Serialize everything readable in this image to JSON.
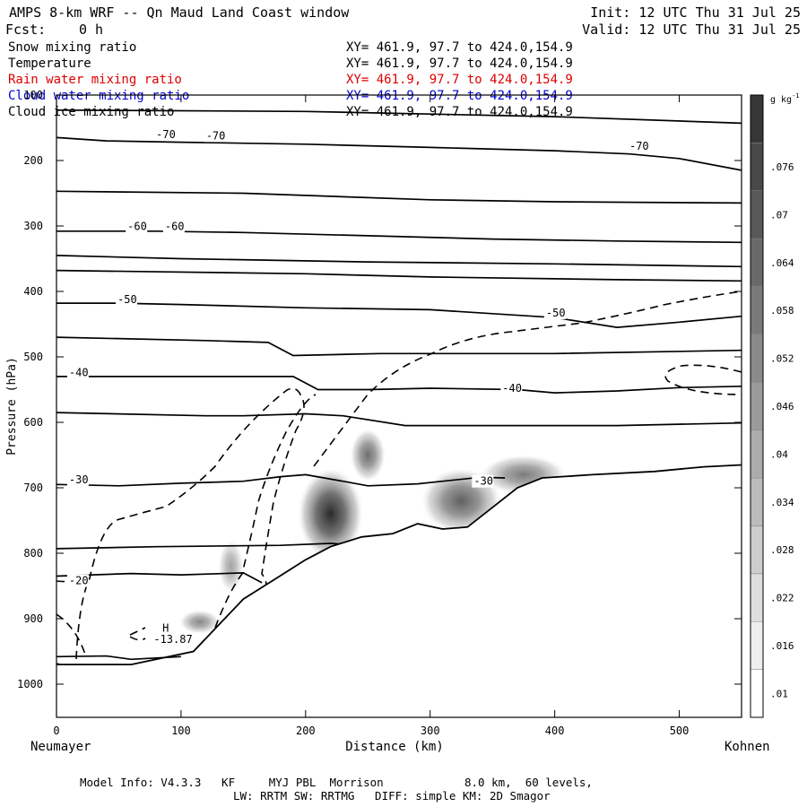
{
  "header": {
    "title": "AMPS 8-km WRF -- Qn Maud Land Coast window",
    "init": "Init: 12 UTC Thu 31 Jul 25",
    "fcst_label": "Fcst:",
    "fcst_value": "0 h",
    "valid": "Valid: 12 UTC Thu 31 Jul 25"
  },
  "legend": {
    "items": [
      {
        "label": "Snow mixing ratio",
        "xy": "XY= 461.9, 97.7 to 424.0,154.9",
        "color": "#000000"
      },
      {
        "label": "Temperature",
        "xy": "XY= 461.9, 97.7 to 424.0,154.9",
        "color": "#000000"
      },
      {
        "label": "Rain water mixing ratio",
        "xy": "XY= 461.9, 97.7 to 424.0,154.9",
        "color": "#dd0000"
      },
      {
        "label": "Cloud water mixing ratio",
        "xy": "XY= 461.9, 97.7 to 424.0,154.9",
        "color": "#0000cc"
      },
      {
        "label": "Cloud ice mixing ratio",
        "xy": "XY= 461.9, 97.7 to 424.0,154.9",
        "color": "#000000"
      }
    ]
  },
  "footer": {
    "line1": "Model Info: V4.3.3   KF     MYJ PBL  Morrison            8.0 km,  60 levels,",
    "line2": "LW: RRTM SW: RRTMG   DIFF: simple KM: 2D Smagor"
  },
  "chart_data": {
    "type": "heatmap",
    "xlabel": "Distance (km)",
    "ylabel": "Pressure (hPa)",
    "x_start_label": "Neumayer",
    "x_end_label": "Kohnen",
    "xlim": [
      0,
      550
    ],
    "ylim": [
      1050,
      100
    ],
    "x_ticks": [
      0,
      100,
      200,
      300,
      400,
      500
    ],
    "y_ticks": [
      100,
      200,
      300,
      400,
      500,
      600,
      700,
      800,
      900,
      1000
    ],
    "colorbar": {
      "unit": "g kg",
      "unit_exponent": "-1",
      "levels": [
        ".01",
        ".016",
        ".022",
        ".028",
        ".034",
        ".04",
        ".046",
        ".052",
        ".058",
        ".064",
        ".07",
        ".076"
      ]
    },
    "terrain": [
      [
        0,
        970
      ],
      [
        60,
        970
      ],
      [
        110,
        950
      ],
      [
        130,
        910
      ],
      [
        150,
        870
      ],
      [
        175,
        840
      ],
      [
        200,
        810
      ],
      [
        220,
        790
      ],
      [
        245,
        775
      ],
      [
        270,
        770
      ],
      [
        290,
        755
      ],
      [
        310,
        763
      ],
      [
        330,
        760
      ],
      [
        350,
        730
      ],
      [
        370,
        700
      ],
      [
        390,
        685
      ],
      [
        430,
        680
      ],
      [
        480,
        675
      ],
      [
        520,
        668
      ],
      [
        550,
        665
      ]
    ],
    "isotherms": [
      {
        "points": [
          [
            0,
            165
          ],
          [
            40,
            170
          ],
          [
            100,
            172
          ],
          [
            200,
            175
          ],
          [
            300,
            180
          ],
          [
            400,
            185
          ],
          [
            460,
            190
          ],
          [
            500,
            197
          ],
          [
            550,
            215
          ]
        ],
        "labels": [
          {
            "text": "-70",
            "x": 80,
            "p": 160
          },
          {
            "text": "-70",
            "x": 120,
            "p": 162
          },
          {
            "text": "-70",
            "x": 460,
            "p": 178
          }
        ]
      },
      {
        "points": [
          [
            0,
            308
          ],
          [
            80,
            308
          ],
          [
            150,
            310
          ],
          [
            250,
            315
          ],
          [
            350,
            320
          ],
          [
            450,
            323
          ],
          [
            550,
            325
          ]
        ],
        "labels": [
          {
            "text": "-60",
            "x": 57,
            "p": 301
          },
          {
            "text": "-60",
            "x": 87,
            "p": 301
          }
        ]
      },
      {
        "points": [
          [
            0,
            418
          ],
          [
            50,
            418
          ],
          [
            100,
            420
          ],
          [
            200,
            425
          ],
          [
            300,
            428
          ],
          [
            400,
            440
          ],
          [
            450,
            455
          ],
          [
            500,
            447
          ],
          [
            550,
            438
          ]
        ],
        "labels": [
          {
            "text": "-50",
            "x": 49,
            "p": 412
          },
          {
            "text": "-50",
            "x": 393,
            "p": 433
          }
        ]
      },
      {
        "points": [
          [
            0,
            530
          ],
          [
            50,
            530
          ],
          [
            150,
            530
          ],
          [
            190,
            530
          ],
          [
            210,
            550
          ],
          [
            250,
            550
          ],
          [
            300,
            548
          ],
          [
            370,
            550
          ],
          [
            400,
            555
          ],
          [
            450,
            552
          ],
          [
            500,
            547
          ],
          [
            550,
            545
          ]
        ],
        "labels": [
          {
            "text": "-40",
            "x": 10,
            "p": 524
          },
          {
            "text": "-40",
            "x": 358,
            "p": 548
          }
        ]
      },
      {
        "points": [
          [
            0,
            695
          ],
          [
            50,
            697
          ],
          [
            100,
            693
          ],
          [
            150,
            690
          ],
          [
            180,
            683
          ],
          [
            200,
            680
          ],
          [
            230,
            690
          ],
          [
            250,
            697
          ],
          [
            290,
            694
          ],
          [
            310,
            690
          ],
          [
            340,
            684
          ],
          [
            360,
            685
          ]
        ],
        "labels": [
          {
            "text": "-30",
            "x": 10,
            "p": 688
          },
          {
            "text": "-30",
            "x": 335,
            "p": 690
          }
        ]
      },
      {
        "points": [
          [
            0,
            835
          ],
          [
            60,
            831
          ],
          [
            100,
            833
          ],
          [
            150,
            830
          ],
          [
            165,
            845
          ]
        ],
        "labels": [
          {
            "text": "-20",
            "x": 10,
            "p": 842
          }
        ]
      }
    ],
    "snow_mixing_ratio": [
      {
        "x": 220,
        "p": 740,
        "rx": 26,
        "rp": 70,
        "value": 0.07
      },
      {
        "x": 250,
        "p": 650,
        "rx": 14,
        "rp": 40,
        "value": 0.04
      },
      {
        "x": 325,
        "p": 720,
        "rx": 32,
        "rp": 50,
        "value": 0.046
      },
      {
        "x": 375,
        "p": 680,
        "rx": 34,
        "rp": 30,
        "value": 0.034
      },
      {
        "x": 140,
        "p": 820,
        "rx": 10,
        "rp": 40,
        "value": 0.016
      },
      {
        "x": 115,
        "p": 905,
        "rx": 16,
        "rp": 18,
        "value": 0.028
      }
    ],
    "annotations": [
      {
        "text": "H",
        "x": 85,
        "p": 920
      },
      {
        "text": "-13.87",
        "x": 78,
        "p": 937
      }
    ]
  }
}
